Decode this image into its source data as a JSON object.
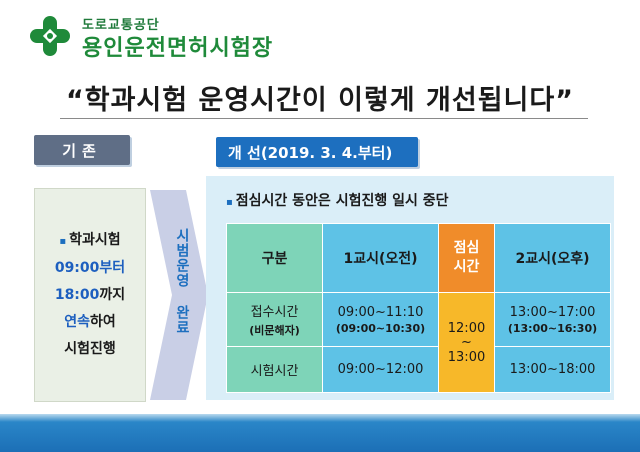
{
  "header": {
    "org_small": "도로교통공단",
    "org_name": "용인운전면허시험장",
    "logo_icon": "cross-clover-logo",
    "headline": "“학과시험 운영시간이 이렇게 개선됩니다”"
  },
  "old": {
    "tag": "기존",
    "lines": [
      "학과시험",
      "09:00부터",
      "18:00까지",
      "연속하여",
      "시험진행"
    ]
  },
  "arrow": {
    "text": "시범운영 완료"
  },
  "new": {
    "tag": "개 선(2019. 3. 4.부터)",
    "notice": "점심시간 동안은 시험진행 일시 중단",
    "table": {
      "header": [
        "구분",
        "1교시(오전)",
        "점심시간",
        "2교시(오후)"
      ],
      "rows": [
        {
          "label": "접수시간",
          "label_sub": "(비문해자)",
          "am": "09:00~11:10",
          "am_sub": "(09:00~10:30)",
          "pm": "13:00~17:00",
          "pm_sub": "(13:00~16:30)"
        },
        {
          "label": "시험시간",
          "am": "09:00~12:00",
          "pm": "13:00~18:00"
        }
      ],
      "lunch": {
        "start": "12:00",
        "sep": "~",
        "end": "13:00"
      }
    }
  },
  "colors": {
    "brand_green": "#1f8a3a",
    "tag_old": "#5f6e86",
    "tag_new": "#1d6fbf",
    "table_blue": "#5ec2e6",
    "table_green": "#7ed4b8",
    "lunch_orange": "#f08c2a",
    "lunch_yellow": "#f7b829"
  }
}
